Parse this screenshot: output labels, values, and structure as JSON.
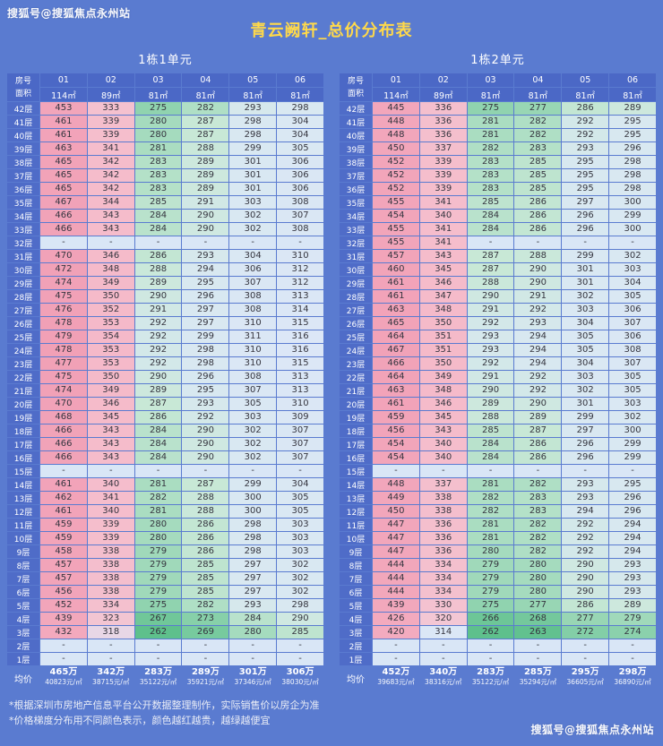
{
  "page": {
    "watermark_top": "搜狐号@搜狐焦点永州站",
    "watermark_bottom": "搜狐号@搜狐焦点永州站",
    "title": "青云阙轩_总价分布表",
    "footnote_1": "*根据深圳市房地产信息平台公开数据整理制作，实际销售价以房企为准",
    "footnote_2": "*价格梯度分布用不同颜色表示，颜色越红越贵，越绿越便宜"
  },
  "colors": {
    "background": "#5a7bd0",
    "header_cell": "#4b68c6",
    "floor_cell": "#4f6cc8",
    "title_text": "#ffd94a",
    "value_text": "#35353f",
    "dash_cell": "#d9e6f6",
    "gradient_stops": [
      [
        262,
        "#5ec08c"
      ],
      [
        270,
        "#7bcba1"
      ],
      [
        279,
        "#a0d9ba"
      ],
      [
        287,
        "#c8e8d6"
      ],
      [
        294,
        "#d8e8f0"
      ],
      [
        317,
        "#dce7f7"
      ],
      [
        319,
        "#f3c7d4"
      ],
      [
        345,
        "#f5bbca"
      ],
      [
        420,
        "#f3abbf"
      ],
      [
        480,
        "#f1a0b6"
      ]
    ]
  },
  "chart_data": [
    {
      "type": "table",
      "name": "1栋1单元",
      "corner_top": "房号",
      "corner_bottom": "面积",
      "columns": [
        "01",
        "02",
        "03",
        "04",
        "05",
        "06"
      ],
      "areas": [
        "114㎡",
        "89㎡",
        "81㎡",
        "81㎡",
        "81㎡",
        "81㎡"
      ],
      "rows": [
        {
          "floor": "42层",
          "values": [
            453,
            333,
            275,
            282,
            293,
            298
          ]
        },
        {
          "floor": "41层",
          "values": [
            461,
            339,
            280,
            287,
            298,
            304
          ]
        },
        {
          "floor": "40层",
          "values": [
            461,
            339,
            280,
            287,
            298,
            304
          ]
        },
        {
          "floor": "39层",
          "values": [
            463,
            341,
            281,
            288,
            299,
            305
          ]
        },
        {
          "floor": "38层",
          "values": [
            465,
            342,
            283,
            289,
            301,
            306
          ]
        },
        {
          "floor": "37层",
          "values": [
            465,
            342,
            283,
            289,
            301,
            306
          ]
        },
        {
          "floor": "36层",
          "values": [
            465,
            342,
            283,
            289,
            301,
            306
          ]
        },
        {
          "floor": "35层",
          "values": [
            467,
            344,
            285,
            291,
            303,
            308
          ]
        },
        {
          "floor": "34层",
          "values": [
            466,
            343,
            284,
            290,
            302,
            307
          ]
        },
        {
          "floor": "33层",
          "values": [
            466,
            343,
            284,
            290,
            302,
            308
          ]
        },
        {
          "floor": "32层",
          "values": [
            "-",
            "-",
            "-",
            "-",
            "-",
            "-"
          ]
        },
        {
          "floor": "31层",
          "values": [
            470,
            346,
            286,
            293,
            304,
            310
          ]
        },
        {
          "floor": "30层",
          "values": [
            472,
            348,
            288,
            294,
            306,
            312
          ]
        },
        {
          "floor": "29层",
          "values": [
            474,
            349,
            289,
            295,
            307,
            312
          ]
        },
        {
          "floor": "28层",
          "values": [
            475,
            350,
            290,
            296,
            308,
            313
          ]
        },
        {
          "floor": "27层",
          "values": [
            476,
            352,
            291,
            297,
            308,
            314
          ]
        },
        {
          "floor": "26层",
          "values": [
            478,
            353,
            292,
            297,
            310,
            315
          ]
        },
        {
          "floor": "25层",
          "values": [
            479,
            354,
            292,
            299,
            311,
            316
          ]
        },
        {
          "floor": "24层",
          "values": [
            478,
            353,
            292,
            298,
            310,
            316
          ]
        },
        {
          "floor": "23层",
          "values": [
            477,
            353,
            292,
            298,
            310,
            315
          ]
        },
        {
          "floor": "22层",
          "values": [
            475,
            350,
            290,
            296,
            308,
            313
          ]
        },
        {
          "floor": "21层",
          "values": [
            474,
            349,
            289,
            295,
            307,
            313
          ]
        },
        {
          "floor": "20层",
          "values": [
            470,
            346,
            287,
            293,
            305,
            310
          ]
        },
        {
          "floor": "19层",
          "values": [
            468,
            345,
            286,
            292,
            303,
            309
          ]
        },
        {
          "floor": "18层",
          "values": [
            466,
            343,
            284,
            290,
            302,
            307
          ]
        },
        {
          "floor": "17层",
          "values": [
            466,
            343,
            284,
            290,
            302,
            307
          ]
        },
        {
          "floor": "16层",
          "values": [
            466,
            343,
            284,
            290,
            302,
            307
          ]
        },
        {
          "floor": "15层",
          "values": [
            "-",
            "-",
            "-",
            "-",
            "-",
            "-"
          ]
        },
        {
          "floor": "14层",
          "values": [
            461,
            340,
            281,
            287,
            299,
            304
          ]
        },
        {
          "floor": "13层",
          "values": [
            462,
            341,
            282,
            288,
            300,
            305
          ]
        },
        {
          "floor": "12层",
          "values": [
            461,
            340,
            281,
            288,
            300,
            305
          ]
        },
        {
          "floor": "11层",
          "values": [
            459,
            339,
            280,
            286,
            298,
            303
          ]
        },
        {
          "floor": "10层",
          "values": [
            459,
            339,
            280,
            286,
            298,
            303
          ]
        },
        {
          "floor": "9层",
          "values": [
            458,
            338,
            279,
            286,
            298,
            303
          ]
        },
        {
          "floor": "8层",
          "values": [
            457,
            338,
            279,
            285,
            297,
            302
          ]
        },
        {
          "floor": "7层",
          "values": [
            457,
            338,
            279,
            285,
            297,
            302
          ]
        },
        {
          "floor": "6层",
          "values": [
            456,
            338,
            279,
            285,
            297,
            302
          ]
        },
        {
          "floor": "5层",
          "values": [
            452,
            334,
            275,
            282,
            293,
            298
          ]
        },
        {
          "floor": "4层",
          "values": [
            439,
            323,
            267,
            273,
            284,
            290
          ]
        },
        {
          "floor": "3层",
          "values": [
            432,
            318,
            262,
            269,
            280,
            285
          ]
        },
        {
          "floor": "2层",
          "values": [
            "-",
            "-",
            "-",
            "-",
            "-",
            "-"
          ]
        },
        {
          "floor": "1层",
          "values": [
            "-",
            "-",
            "-",
            "-",
            "-",
            "-"
          ]
        }
      ],
      "avg_label": "均价",
      "avg_totals": [
        "465万",
        "342万",
        "283万",
        "289万",
        "301万",
        "306万"
      ],
      "avg_unit_prices": [
        "40823元/㎡",
        "38715元/㎡",
        "35122元/㎡",
        "35921元/㎡",
        "37346元/㎡",
        "38030元/㎡"
      ]
    },
    {
      "type": "table",
      "name": "1栋2单元",
      "corner_top": "房号",
      "corner_bottom": "面积",
      "columns": [
        "01",
        "02",
        "03",
        "04",
        "05",
        "06"
      ],
      "areas": [
        "114㎡",
        "89㎡",
        "81㎡",
        "81㎡",
        "81㎡",
        "81㎡"
      ],
      "rows": [
        {
          "floor": "42层",
          "values": [
            445,
            336,
            275,
            277,
            286,
            289
          ]
        },
        {
          "floor": "41层",
          "values": [
            448,
            336,
            281,
            282,
            292,
            295
          ]
        },
        {
          "floor": "40层",
          "values": [
            448,
            336,
            281,
            282,
            292,
            295
          ]
        },
        {
          "floor": "39层",
          "values": [
            450,
            337,
            282,
            283,
            293,
            296
          ]
        },
        {
          "floor": "38层",
          "values": [
            452,
            339,
            283,
            285,
            295,
            298
          ]
        },
        {
          "floor": "37层",
          "values": [
            452,
            339,
            283,
            285,
            295,
            298
          ]
        },
        {
          "floor": "36层",
          "values": [
            452,
            339,
            283,
            285,
            295,
            298
          ]
        },
        {
          "floor": "35层",
          "values": [
            455,
            341,
            285,
            286,
            297,
            300
          ]
        },
        {
          "floor": "34层",
          "values": [
            454,
            340,
            284,
            286,
            296,
            299
          ]
        },
        {
          "floor": "33层",
          "values": [
            455,
            341,
            284,
            286,
            296,
            300
          ]
        },
        {
          "floor": "32层",
          "values": [
            455,
            341,
            "-",
            "-",
            "-",
            "-"
          ]
        },
        {
          "floor": "31层",
          "values": [
            457,
            343,
            287,
            288,
            299,
            302
          ]
        },
        {
          "floor": "30层",
          "values": [
            460,
            345,
            287,
            290,
            301,
            303
          ]
        },
        {
          "floor": "29层",
          "values": [
            461,
            346,
            288,
            290,
            301,
            304
          ]
        },
        {
          "floor": "28层",
          "values": [
            461,
            347,
            290,
            291,
            302,
            305
          ]
        },
        {
          "floor": "27层",
          "values": [
            463,
            348,
            291,
            292,
            303,
            306
          ]
        },
        {
          "floor": "26层",
          "values": [
            465,
            350,
            292,
            293,
            304,
            307
          ]
        },
        {
          "floor": "25层",
          "values": [
            464,
            351,
            293,
            294,
            305,
            306
          ]
        },
        {
          "floor": "24层",
          "values": [
            467,
            351,
            293,
            294,
            305,
            308
          ]
        },
        {
          "floor": "23层",
          "values": [
            466,
            350,
            292,
            294,
            304,
            307
          ]
        },
        {
          "floor": "22层",
          "values": [
            464,
            349,
            291,
            292,
            303,
            305
          ]
        },
        {
          "floor": "21层",
          "values": [
            463,
            348,
            290,
            292,
            302,
            305
          ]
        },
        {
          "floor": "20层",
          "values": [
            461,
            346,
            289,
            290,
            301,
            303
          ]
        },
        {
          "floor": "19层",
          "values": [
            459,
            345,
            288,
            289,
            299,
            302
          ]
        },
        {
          "floor": "18层",
          "values": [
            456,
            343,
            285,
            287,
            297,
            300
          ]
        },
        {
          "floor": "17层",
          "values": [
            454,
            340,
            284,
            286,
            296,
            299
          ]
        },
        {
          "floor": "16层",
          "values": [
            454,
            340,
            284,
            286,
            296,
            299
          ]
        },
        {
          "floor": "15层",
          "values": [
            "-",
            "-",
            "-",
            "-",
            "-",
            "-"
          ]
        },
        {
          "floor": "14层",
          "values": [
            448,
            337,
            281,
            282,
            293,
            295
          ]
        },
        {
          "floor": "13层",
          "values": [
            449,
            338,
            282,
            283,
            293,
            296
          ]
        },
        {
          "floor": "12层",
          "values": [
            450,
            338,
            282,
            283,
            294,
            296
          ]
        },
        {
          "floor": "11层",
          "values": [
            447,
            336,
            281,
            282,
            292,
            294
          ]
        },
        {
          "floor": "10层",
          "values": [
            447,
            336,
            281,
            282,
            292,
            294
          ]
        },
        {
          "floor": "9层",
          "values": [
            447,
            336,
            280,
            282,
            292,
            294
          ]
        },
        {
          "floor": "8层",
          "values": [
            444,
            334,
            279,
            280,
            290,
            293
          ]
        },
        {
          "floor": "7层",
          "values": [
            444,
            334,
            279,
            280,
            290,
            293
          ]
        },
        {
          "floor": "6层",
          "values": [
            444,
            334,
            279,
            280,
            290,
            293
          ]
        },
        {
          "floor": "5层",
          "values": [
            439,
            330,
            275,
            277,
            286,
            289
          ]
        },
        {
          "floor": "4层",
          "values": [
            426,
            320,
            266,
            268,
            277,
            279
          ]
        },
        {
          "floor": "3层",
          "values": [
            420,
            314,
            262,
            263,
            272,
            274
          ]
        },
        {
          "floor": "2层",
          "values": [
            "-",
            "-",
            "-",
            "-",
            "-",
            "-"
          ]
        },
        {
          "floor": "1层",
          "values": [
            "-",
            "-",
            "-",
            "-",
            "-",
            "-"
          ]
        }
      ],
      "avg_label": "均价",
      "avg_totals": [
        "452万",
        "340万",
        "283万",
        "285万",
        "295万",
        "298万"
      ],
      "avg_unit_prices": [
        "39683元/㎡",
        "38316元/㎡",
        "35122元/㎡",
        "35294元/㎡",
        "36605元/㎡",
        "36890元/㎡"
      ]
    }
  ]
}
